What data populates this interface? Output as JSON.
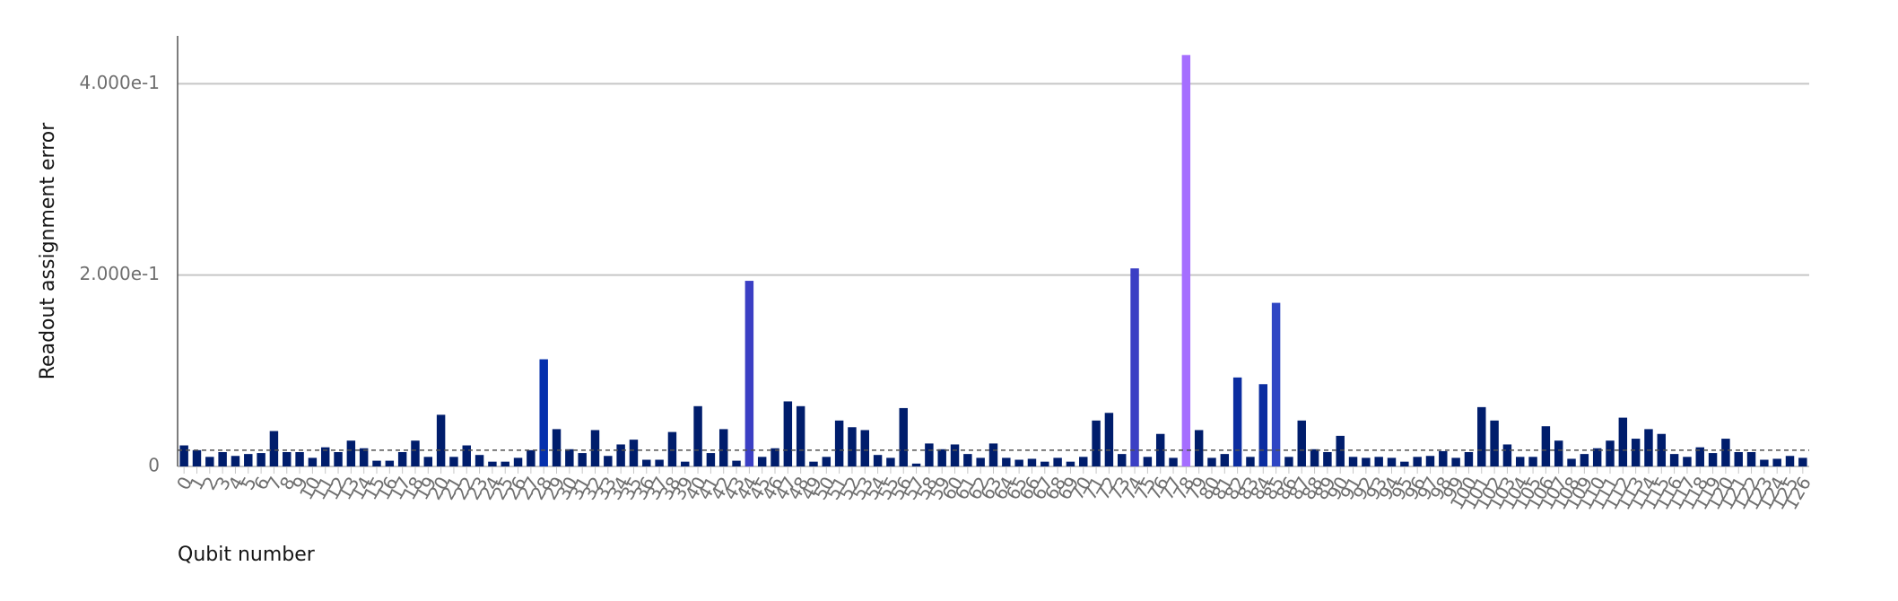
{
  "chart_data": {
    "type": "bar",
    "x_label": "Qubit number",
    "y_label": "Readout assignment error",
    "categories": [
      "0",
      "1",
      "2",
      "3",
      "4",
      "5",
      "6",
      "7",
      "8",
      "9",
      "10",
      "11",
      "12",
      "13",
      "14",
      "15",
      "16",
      "17",
      "18",
      "19",
      "20",
      "21",
      "22",
      "23",
      "24",
      "25",
      "26",
      "27",
      "28",
      "29",
      "30",
      "31",
      "32",
      "33",
      "34",
      "35",
      "36",
      "37",
      "38",
      "39",
      "40",
      "41",
      "42",
      "43",
      "44",
      "45",
      "46",
      "47",
      "48",
      "49",
      "50",
      "51",
      "52",
      "53",
      "54",
      "55",
      "56",
      "57",
      "58",
      "59",
      "60",
      "61",
      "62",
      "63",
      "64",
      "65",
      "66",
      "67",
      "68",
      "69",
      "70",
      "71",
      "72",
      "73",
      "74",
      "75",
      "76",
      "77",
      "78",
      "79",
      "80",
      "81",
      "82",
      "83",
      "84",
      "85",
      "86",
      "87",
      "88",
      "89",
      "90",
      "91",
      "92",
      "93",
      "94",
      "95",
      "96",
      "97",
      "98",
      "99",
      "100",
      "101",
      "102",
      "103",
      "104",
      "105",
      "106",
      "107",
      "108",
      "109",
      "110",
      "111",
      "112",
      "113",
      "114",
      "115",
      "116",
      "117",
      "118",
      "119",
      "120",
      "121",
      "122",
      "123",
      "124",
      "125",
      "126"
    ],
    "values": [
      0.022,
      0.017,
      0.01,
      0.015,
      0.011,
      0.013,
      0.014,
      0.037,
      0.015,
      0.015,
      0.009,
      0.02,
      0.015,
      0.027,
      0.019,
      0.006,
      0.006,
      0.015,
      0.027,
      0.01,
      0.054,
      0.01,
      0.022,
      0.012,
      0.005,
      0.005,
      0.009,
      0.017,
      0.112,
      0.039,
      0.018,
      0.014,
      0.038,
      0.011,
      0.023,
      0.028,
      0.007,
      0.007,
      0.036,
      0.005,
      0.063,
      0.014,
      0.039,
      0.006,
      0.194,
      0.01,
      0.019,
      0.068,
      0.063,
      0.005,
      0.01,
      0.048,
      0.041,
      0.038,
      0.012,
      0.009,
      0.061,
      0.003,
      0.024,
      0.018,
      0.023,
      0.013,
      0.009,
      0.024,
      0.009,
      0.007,
      0.008,
      0.005,
      0.009,
      0.005,
      0.01,
      0.048,
      0.056,
      0.013,
      0.207,
      0.01,
      0.034,
      0.009,
      0.43,
      0.038,
      0.009,
      0.013,
      0.093,
      0.01,
      0.086,
      0.171,
      0.01,
      0.048,
      0.018,
      0.015,
      0.032,
      0.01,
      0.009,
      0.01,
      0.009,
      0.005,
      0.01,
      0.011,
      0.016,
      0.009,
      0.015,
      0.062,
      0.048,
      0.023,
      0.01,
      0.01,
      0.042,
      0.027,
      0.008,
      0.013,
      0.019,
      0.027,
      0.051,
      0.029,
      0.039,
      0.034,
      0.013,
      0.01,
      0.02,
      0.014,
      0.029,
      0.015,
      0.015,
      0.007,
      0.008,
      0.011,
      0.009
    ],
    "colors": [
      "#001d6c",
      "#001d6c",
      "#001d6c",
      "#001d6c",
      "#001d6c",
      "#001d6c",
      "#001d6c",
      "#001d6c",
      "#001d6c",
      "#001d6c",
      "#001d6c",
      "#001d6c",
      "#001d6c",
      "#001d6c",
      "#001d6c",
      "#001d6c",
      "#001d6c",
      "#001d6c",
      "#001d6c",
      "#001d6c",
      "#001d6c",
      "#001d6c",
      "#001d6c",
      "#001d6c",
      "#001d6c",
      "#001d6c",
      "#001d6c",
      "#001d6c",
      "#0530ad",
      "#001d6c",
      "#001d6c",
      "#001d6c",
      "#001d6c",
      "#001d6c",
      "#001d6c",
      "#001d6c",
      "#001d6c",
      "#001d6c",
      "#001d6c",
      "#001d6c",
      "#001d6c",
      "#001d6c",
      "#001d6c",
      "#001d6c",
      "#3b3fc4",
      "#001d6c",
      "#001d6c",
      "#001d6c",
      "#001d6c",
      "#001d6c",
      "#001d6c",
      "#001d6c",
      "#001d6c",
      "#001d6c",
      "#001d6c",
      "#001d6c",
      "#001d6c",
      "#001d6c",
      "#001d6c",
      "#001d6c",
      "#001d6c",
      "#001d6c",
      "#001d6c",
      "#001d6c",
      "#001d6c",
      "#001d6c",
      "#001d6c",
      "#001d6c",
      "#001d6c",
      "#001d6c",
      "#001d6c",
      "#001d6c",
      "#001d6c",
      "#001d6c",
      "#3b3fc4",
      "#001d6c",
      "#001d6c",
      "#001d6c",
      "#a56eff",
      "#001d6c",
      "#001d6c",
      "#001d6c",
      "#0b2da0",
      "#001d6c",
      "#0b2da0",
      "#2f46c4",
      "#001d6c",
      "#001d6c",
      "#001d6c",
      "#001d6c",
      "#001d6c",
      "#001d6c",
      "#001d6c",
      "#001d6c",
      "#001d6c",
      "#001d6c",
      "#001d6c",
      "#001d6c",
      "#001d6c",
      "#001d6c",
      "#001d6c",
      "#001d6c",
      "#001d6c",
      "#001d6c",
      "#001d6c",
      "#001d6c",
      "#001d6c",
      "#001d6c",
      "#001d6c",
      "#001d6c",
      "#001d6c",
      "#001d6c",
      "#001d6c",
      "#001d6c",
      "#001d6c",
      "#001d6c",
      "#001d6c",
      "#001d6c",
      "#001d6c",
      "#001d6c",
      "#001d6c",
      "#001d6c",
      "#001d6c",
      "#001d6c",
      "#001d6c",
      "#001d6c",
      "#001d6c"
    ],
    "reference_line": 0.017,
    "ylim": [
      0,
      0.45
    ],
    "yticks": [
      0,
      {
        "value": 0.2,
        "label": "2.000e-1"
      },
      {
        "value": 0.4,
        "label": "4.000e-1"
      }
    ],
    "grid": true
  }
}
